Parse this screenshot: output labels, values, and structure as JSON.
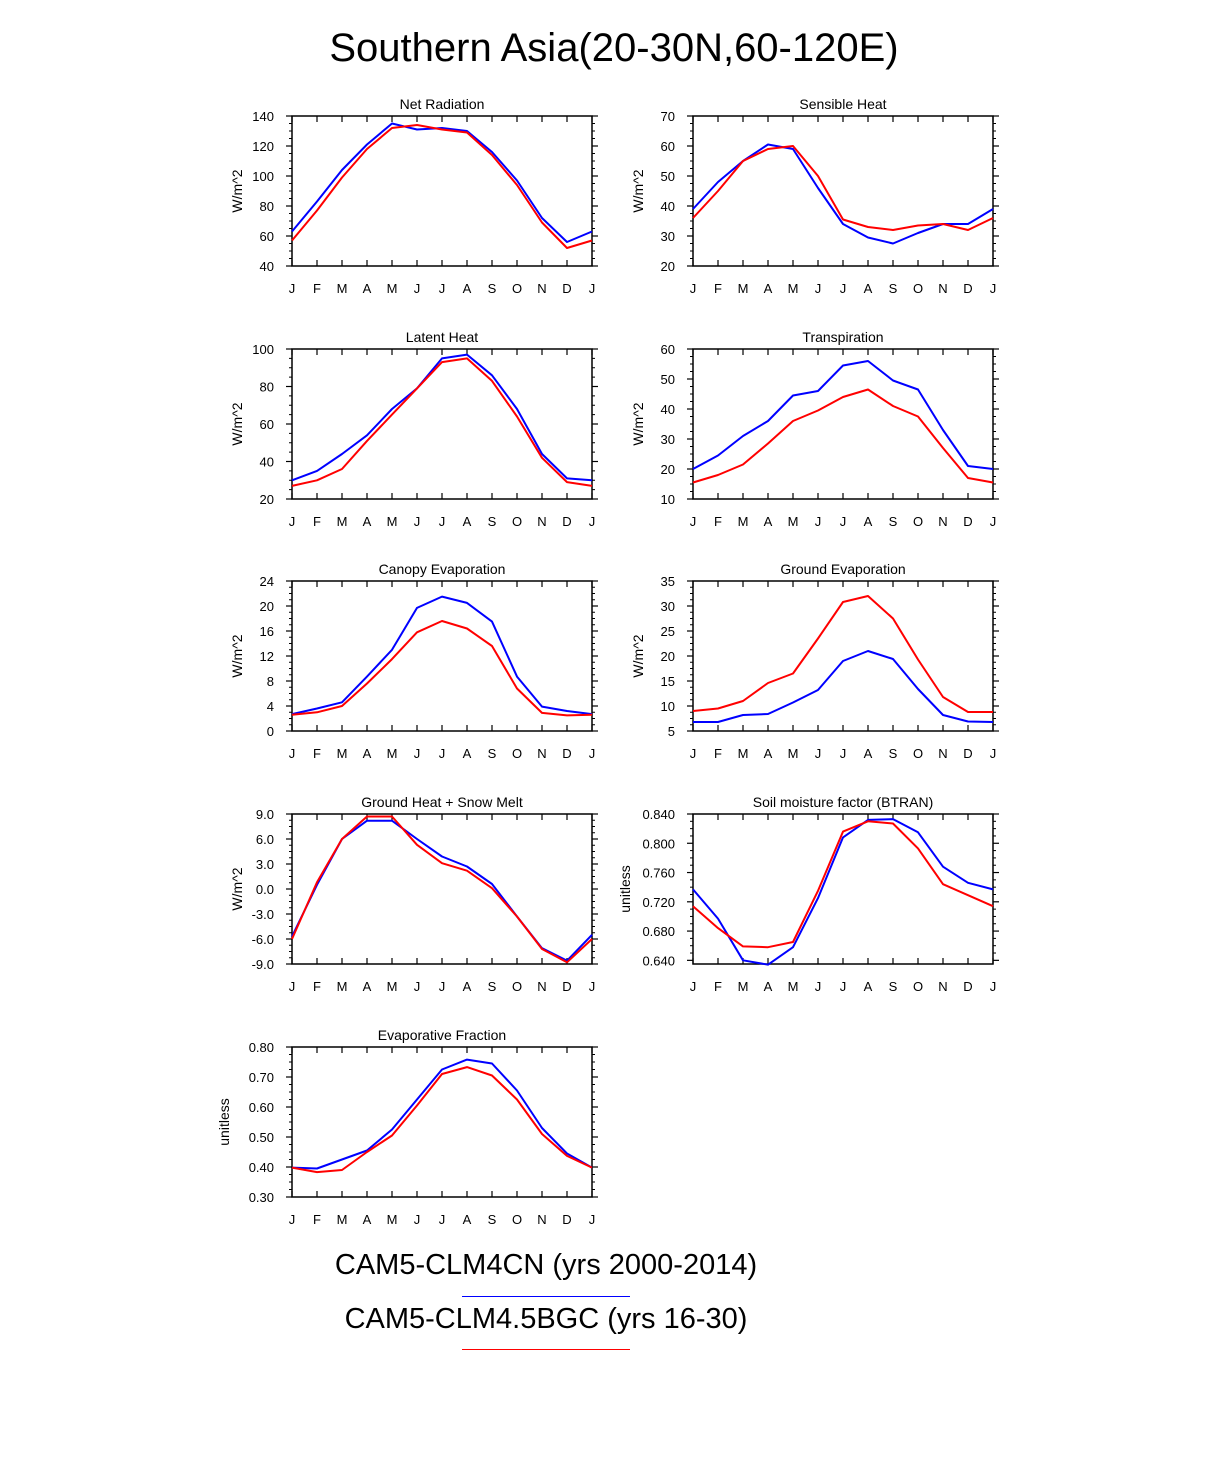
{
  "title": "Southern Asia(20-30N,60-120E)",
  "legend": [
    {
      "label": "CAM5-CLM4CN (yrs 2000-2014)",
      "color": "#0000ff"
    },
    {
      "label": "CAM5-CLM4.5BGC (yrs 16-30)",
      "color": "#ff0000"
    }
  ],
  "chart_data": [
    {
      "type": "line",
      "title": "Net Radiation",
      "ylabel": "W/m^2",
      "categories": [
        "J",
        "F",
        "M",
        "A",
        "M",
        "J",
        "J",
        "A",
        "S",
        "O",
        "N",
        "D",
        "J"
      ],
      "ylim": [
        40,
        140
      ],
      "yticks": [
        "140",
        "120",
        "100",
        "80",
        "60",
        "40"
      ],
      "series": [
        {
          "color": "#0000ff",
          "values": [
            63,
            83,
            104,
            121,
            135,
            131,
            132,
            130,
            116,
            97,
            72,
            56,
            63
          ]
        },
        {
          "color": "#ff0000",
          "values": [
            57,
            77,
            99,
            118,
            132,
            134,
            131,
            129,
            114,
            94,
            69,
            52,
            57
          ]
        }
      ]
    },
    {
      "type": "line",
      "title": "Sensible Heat",
      "ylabel": "W/m^2",
      "categories": [
        "J",
        "F",
        "M",
        "A",
        "M",
        "J",
        "J",
        "A",
        "S",
        "O",
        "N",
        "D",
        "J"
      ],
      "ylim": [
        20,
        70
      ],
      "yticks": [
        "70",
        "60",
        "50",
        "40",
        "30",
        "20"
      ],
      "series": [
        {
          "color": "#0000ff",
          "values": [
            39,
            48,
            55,
            60.5,
            59,
            46,
            34,
            29.5,
            27.5,
            31,
            34,
            34,
            39
          ]
        },
        {
          "color": "#ff0000",
          "values": [
            36,
            45,
            55,
            59,
            60,
            50,
            35.5,
            33,
            32,
            33.5,
            34,
            32,
            36
          ]
        }
      ]
    },
    {
      "type": "line",
      "title": "Latent Heat",
      "ylabel": "W/m^2",
      "categories": [
        "J",
        "F",
        "M",
        "A",
        "M",
        "J",
        "J",
        "A",
        "S",
        "O",
        "N",
        "D",
        "J"
      ],
      "ylim": [
        20,
        100
      ],
      "yticks": [
        "100",
        "80",
        "60",
        "40",
        "20"
      ],
      "series": [
        {
          "color": "#0000ff",
          "values": [
            30,
            35,
            44,
            54,
            68,
            79,
            95,
            97,
            86,
            68,
            44,
            31,
            30
          ]
        },
        {
          "color": "#ff0000",
          "values": [
            27,
            30,
            36,
            51,
            65,
            79,
            93,
            95,
            83,
            64,
            42,
            29,
            27
          ]
        }
      ]
    },
    {
      "type": "line",
      "title": "Transpiration",
      "ylabel": "W/m^2",
      "categories": [
        "J",
        "F",
        "M",
        "A",
        "M",
        "J",
        "J",
        "A",
        "S",
        "O",
        "N",
        "D",
        "J"
      ],
      "ylim": [
        10,
        60
      ],
      "yticks": [
        "60",
        "50",
        "40",
        "30",
        "20",
        "10"
      ],
      "series": [
        {
          "color": "#0000ff",
          "values": [
            20,
            24.5,
            31,
            36,
            44.5,
            46,
            54.5,
            56,
            49.5,
            46.5,
            33,
            21,
            20
          ]
        },
        {
          "color": "#ff0000",
          "values": [
            15.5,
            18,
            21.5,
            28.5,
            36,
            39.5,
            44,
            46.5,
            41,
            37.5,
            27,
            17,
            15.5
          ]
        }
      ]
    },
    {
      "type": "line",
      "title": "Canopy Evaporation",
      "ylabel": "W/m^2",
      "categories": [
        "J",
        "F",
        "M",
        "A",
        "M",
        "J",
        "J",
        "A",
        "S",
        "O",
        "N",
        "D",
        "J"
      ],
      "ylim": [
        0,
        24
      ],
      "yticks": [
        "24",
        "20",
        "16",
        "12",
        "8",
        "4",
        "0"
      ],
      "series": [
        {
          "color": "#0000ff",
          "values": [
            2.7,
            3.6,
            4.6,
            8.7,
            13,
            19.7,
            21.5,
            20.5,
            17.5,
            8.7,
            3.9,
            3.2,
            2.7
          ]
        },
        {
          "color": "#ff0000",
          "values": [
            2.6,
            3.0,
            4.0,
            7.6,
            11.5,
            15.8,
            17.6,
            16.4,
            13.6,
            6.8,
            2.9,
            2.5,
            2.6
          ]
        }
      ]
    },
    {
      "type": "line",
      "title": "Ground Evaporation",
      "ylabel": "W/m^2",
      "categories": [
        "J",
        "F",
        "M",
        "A",
        "M",
        "J",
        "J",
        "A",
        "S",
        "O",
        "N",
        "D",
        "J"
      ],
      "ylim": [
        5,
        35
      ],
      "yticks": [
        "35",
        "30",
        "25",
        "20",
        "15",
        "10",
        "5"
      ],
      "series": [
        {
          "color": "#0000ff",
          "values": [
            6.8,
            6.8,
            8.2,
            8.4,
            10.7,
            13.2,
            19,
            21,
            19.4,
            13.4,
            8.2,
            6.9,
            6.8
          ]
        },
        {
          "color": "#ff0000",
          "values": [
            9,
            9.5,
            11,
            14.6,
            16.5,
            23.5,
            30.8,
            32,
            27.5,
            19.3,
            11.8,
            8.8,
            8.8
          ]
        }
      ]
    },
    {
      "type": "line",
      "title": "Ground Heat + Snow Melt",
      "ylabel": "W/m^2",
      "categories": [
        "J",
        "F",
        "M",
        "A",
        "M",
        "J",
        "J",
        "A",
        "S",
        "O",
        "N",
        "D",
        "J"
      ],
      "ylim": [
        -9,
        9
      ],
      "yticks": [
        "9.0",
        "6.0",
        "3.0",
        "0.0",
        "-3.0",
        "-6.0",
        "-9.0"
      ],
      "series": [
        {
          "color": "#0000ff",
          "values": [
            -5.7,
            0.5,
            6,
            8.2,
            8.2,
            6,
            3.9,
            2.7,
            0.6,
            -3.3,
            -7.1,
            -8.6,
            -5.5
          ]
        },
        {
          "color": "#ff0000",
          "values": [
            -6,
            0.8,
            6,
            8.7,
            8.7,
            5.3,
            3.1,
            2.2,
            0.1,
            -3.3,
            -7.2,
            -8.8,
            -6
          ]
        }
      ]
    },
    {
      "type": "line",
      "title": "Soil moisture factor (BTRAN)",
      "ylabel": "unitless",
      "categories": [
        "J",
        "F",
        "M",
        "A",
        "M",
        "J",
        "J",
        "A",
        "S",
        "O",
        "N",
        "D",
        "J"
      ],
      "ylim": [
        0.635,
        0.84
      ],
      "yticks": [
        "0.840",
        "0.800",
        "0.760",
        "0.720",
        "0.680",
        "0.640"
      ],
      "series": [
        {
          "color": "#0000ff",
          "values": [
            0.737,
            0.697,
            0.64,
            0.634,
            0.658,
            0.725,
            0.808,
            0.832,
            0.833,
            0.815,
            0.768,
            0.746,
            0.737
          ]
        },
        {
          "color": "#ff0000",
          "values": [
            0.714,
            0.684,
            0.659,
            0.658,
            0.665,
            0.735,
            0.816,
            0.83,
            0.827,
            0.793,
            0.744,
            0.729,
            0.714
          ]
        }
      ]
    },
    {
      "type": "line",
      "title": "Evaporative Fraction",
      "ylabel": "unitless",
      "categories": [
        "J",
        "F",
        "M",
        "A",
        "M",
        "J",
        "J",
        "A",
        "S",
        "O",
        "N",
        "D",
        "J"
      ],
      "ylim": [
        0.3,
        0.8
      ],
      "yticks": [
        "0.80",
        "0.70",
        "0.60",
        "0.50",
        "0.40",
        "0.30"
      ],
      "series": [
        {
          "color": "#0000ff",
          "values": [
            0.398,
            0.395,
            0.425,
            0.455,
            0.525,
            0.625,
            0.725,
            0.758,
            0.745,
            0.655,
            0.53,
            0.445,
            0.398
          ]
        },
        {
          "color": "#ff0000",
          "values": [
            0.398,
            0.383,
            0.39,
            0.45,
            0.505,
            0.605,
            0.71,
            0.733,
            0.705,
            0.625,
            0.51,
            0.437,
            0.398
          ]
        }
      ]
    }
  ]
}
